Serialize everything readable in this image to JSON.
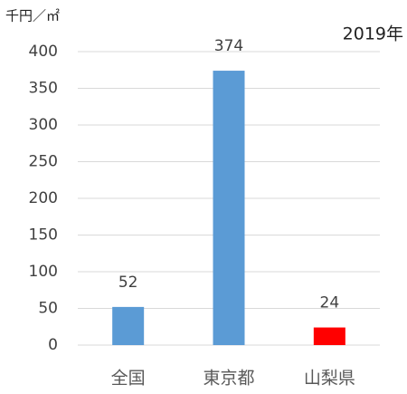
{
  "chart_data": {
    "type": "bar",
    "y_label": "千円／㎡",
    "annotation": "2019年",
    "categories": [
      "全国",
      "東京都",
      "山梨県"
    ],
    "values": [
      52,
      374,
      24
    ],
    "colors": [
      "#5b9bd5",
      "#5b9bd5",
      "#ff0000"
    ],
    "ylim": [
      0,
      400
    ],
    "yticks": [
      0,
      50,
      100,
      150,
      200,
      250,
      300,
      350,
      400
    ],
    "grid": true
  }
}
